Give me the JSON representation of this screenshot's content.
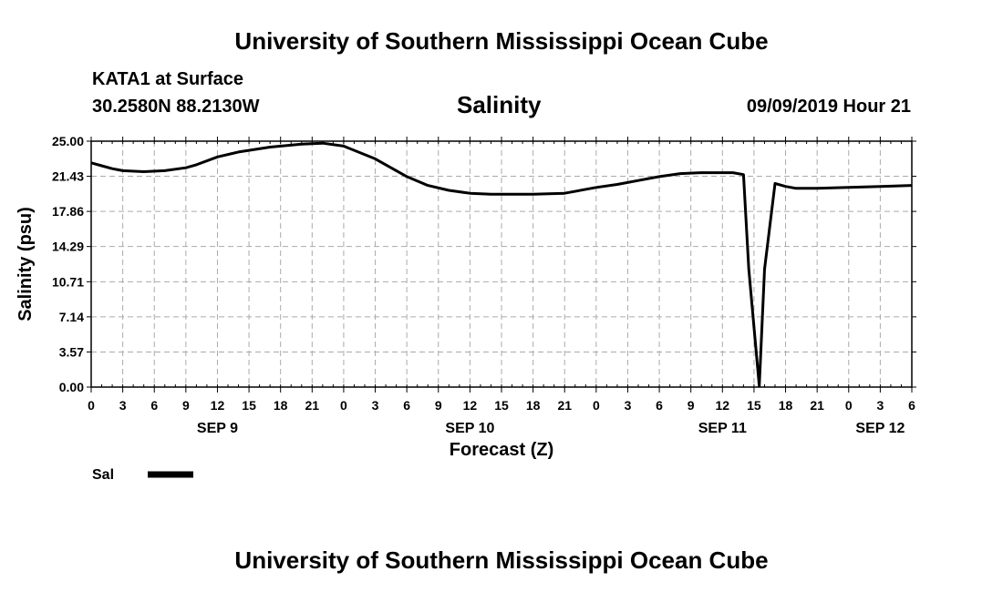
{
  "header": {
    "top_title": "University of Southern Mississippi Ocean Cube",
    "bottom_title": "University of Southern Mississippi Ocean Cube",
    "station": "KATA1 at Surface",
    "coords": "30.2580N 88.2130W",
    "plot_name": "Salinity",
    "run_time": "09/09/2019 Hour 21"
  },
  "colors": {
    "line": "#000000",
    "grid": "#aaaaaa"
  },
  "chart_data": {
    "type": "line",
    "title": "Salinity",
    "xlabel": "Forecast (Z)",
    "ylabel": "Salinity (psu)",
    "xlim": [
      0,
      78
    ],
    "ylim": [
      0,
      25
    ],
    "y_ticks": [
      "0.00",
      "3.57",
      "7.14",
      "10.71",
      "14.29",
      "17.86",
      "21.43",
      "25.00"
    ],
    "x_tick_labels": [
      "0",
      "3",
      "6",
      "9",
      "12",
      "15",
      "18",
      "21",
      "0",
      "3",
      "6",
      "9",
      "12",
      "15",
      "18",
      "21",
      "0",
      "3",
      "6",
      "9",
      "12",
      "15",
      "18",
      "21",
      "0",
      "3",
      "6"
    ],
    "date_labels": [
      {
        "label": "SEP 9",
        "hour": 12
      },
      {
        "label": "SEP 10",
        "hour": 36
      },
      {
        "label": "SEP 11",
        "hour": 60
      },
      {
        "label": "SEP 12",
        "hour": 75
      }
    ],
    "grid": true,
    "legend": [
      {
        "name": "Sal",
        "position": "bottom-left"
      }
    ],
    "series": [
      {
        "name": "Sal",
        "x": [
          0,
          1,
          2,
          3,
          5,
          7,
          9,
          10,
          12,
          14,
          17,
          20,
          22,
          24,
          27,
          30,
          32,
          34,
          36,
          38,
          40,
          42,
          45,
          48,
          50,
          52,
          54,
          56,
          58,
          59,
          60,
          61,
          62,
          62.5,
          63.5,
          64,
          65,
          66,
          67,
          69,
          72,
          75,
          78
        ],
        "y": [
          22.8,
          22.5,
          22.2,
          22.0,
          21.9,
          22.0,
          22.3,
          22.6,
          23.4,
          23.9,
          24.4,
          24.7,
          24.8,
          24.5,
          23.2,
          21.4,
          20.5,
          20.0,
          19.7,
          19.6,
          19.6,
          19.6,
          19.7,
          20.3,
          20.6,
          21.0,
          21.4,
          21.7,
          21.8,
          21.8,
          21.8,
          21.8,
          21.6,
          12.0,
          0.1,
          12.0,
          20.7,
          20.4,
          20.2,
          20.2,
          20.3,
          20.4,
          20.5
        ]
      }
    ]
  }
}
